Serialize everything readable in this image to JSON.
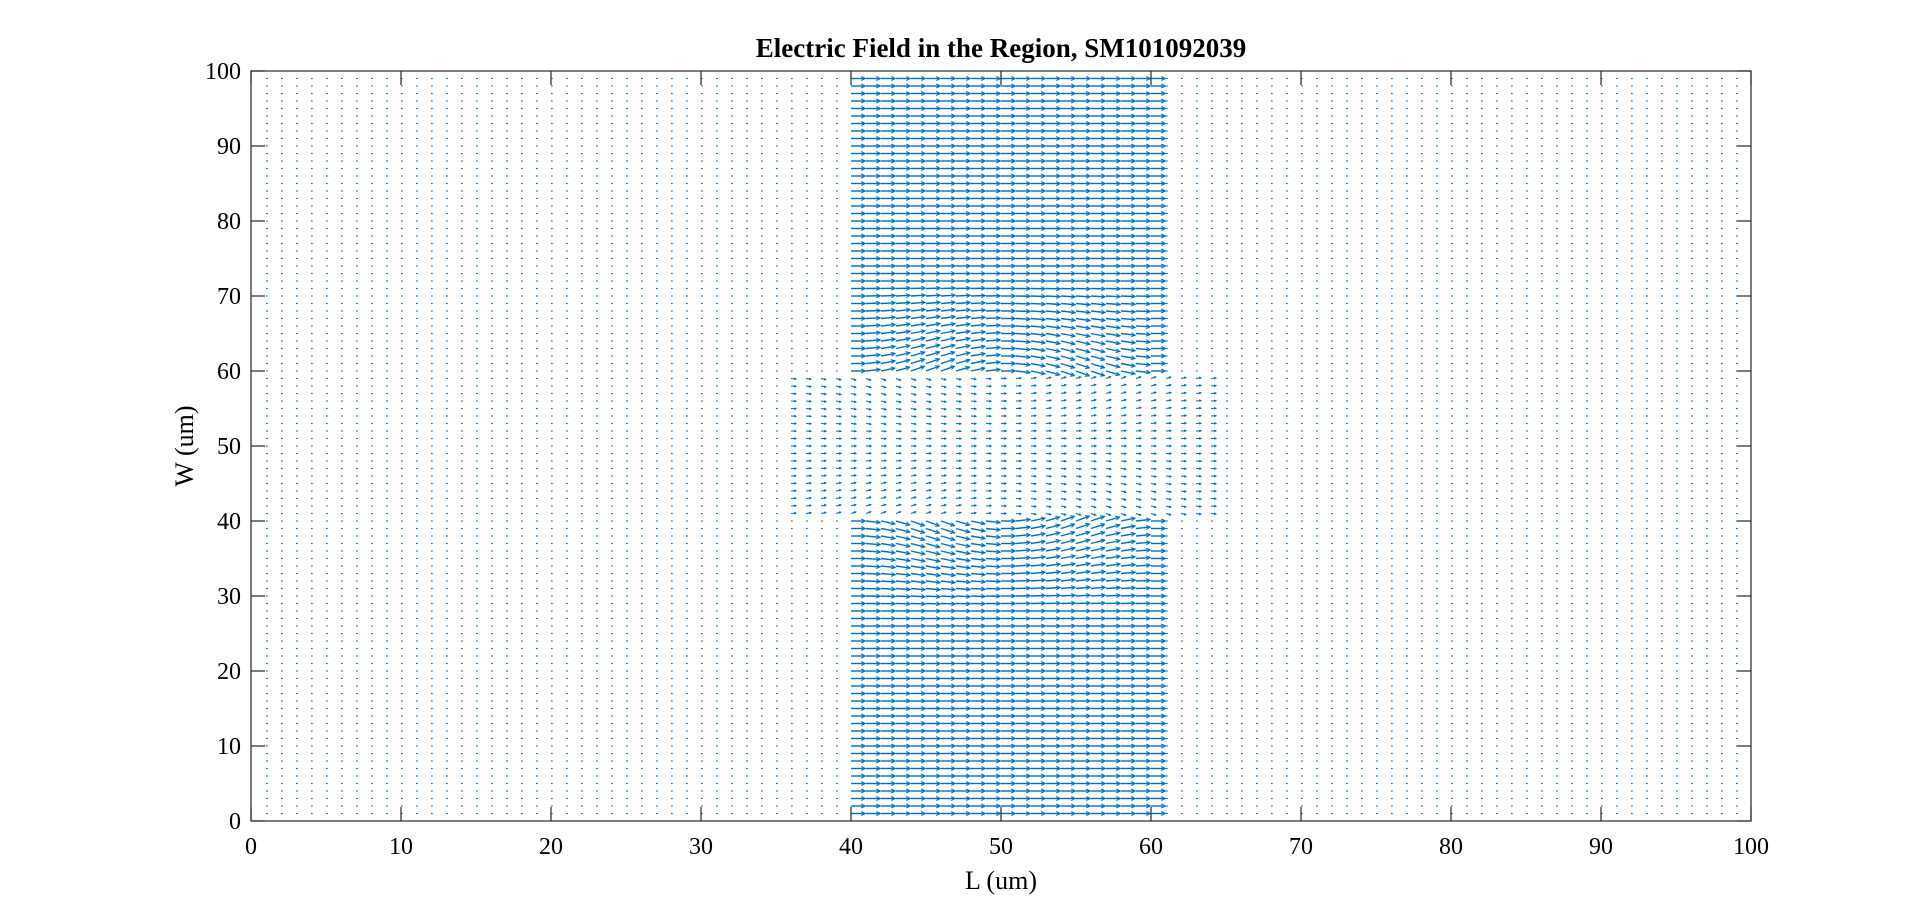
{
  "chart_data": {
    "type": "quiver",
    "title": "Electric Field in the Region, SM101092039",
    "xlabel": "L (um)",
    "ylabel": "W (um)",
    "xlim": [
      0,
      100
    ],
    "ylim": [
      0,
      100
    ],
    "xticks": [
      "0",
      "10",
      "20",
      "30",
      "40",
      "50",
      "60",
      "70",
      "80",
      "90",
      "100"
    ],
    "yticks": [
      "0",
      "10",
      "20",
      "30",
      "40",
      "50",
      "60",
      "70",
      "80",
      "90",
      "100"
    ],
    "grid": false,
    "legend": "none",
    "series": [
      {
        "grid_x_range": [
          1,
          99
        ],
        "grid_y_range": [
          1,
          99
        ],
        "grid_step": 1,
        "field_direction": "+x",
        "high_field_region": {
          "x": [
            40,
            60
          ],
          "y_lower": [
            0,
            40
          ],
          "y_upper": [
            60,
            100
          ]
        },
        "field_magnitude_outside_region": 0.12,
        "field_magnitude_inside_region": 1.0,
        "color": "#0072BD"
      }
    ]
  }
}
